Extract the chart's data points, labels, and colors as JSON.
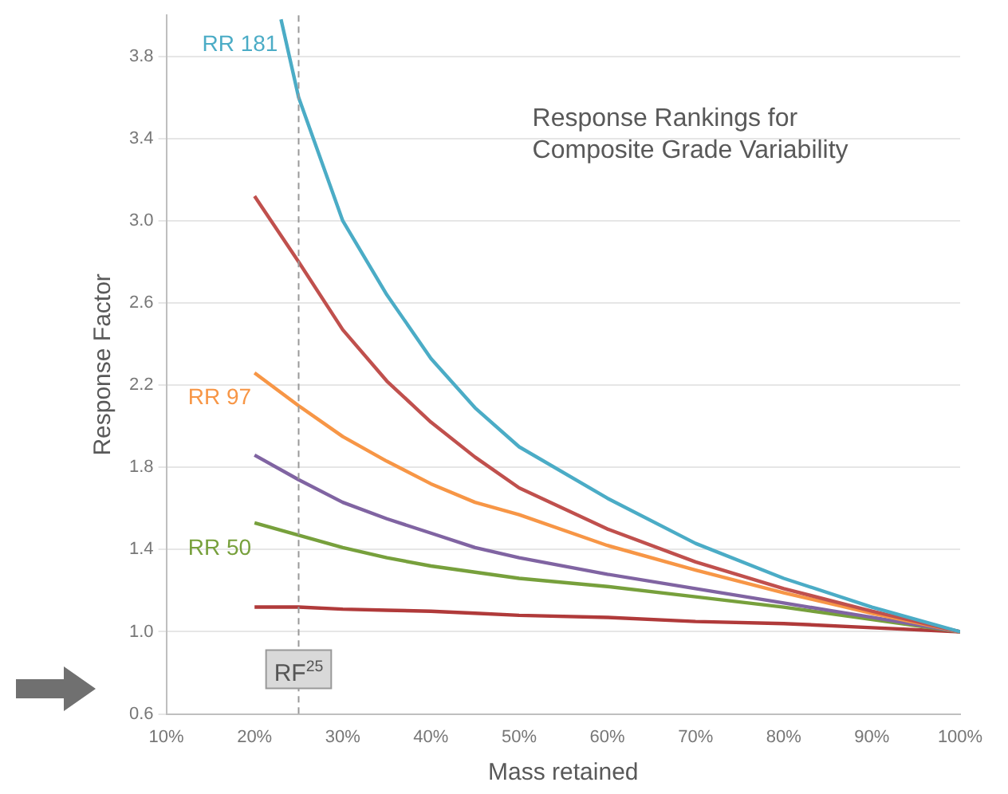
{
  "chart_data": {
    "type": "line",
    "title": "Response Rankings for\nComposite Grade Variability",
    "xlabel": "Mass retained",
    "ylabel": "Response Factor",
    "x": [
      20,
      25,
      30,
      35,
      40,
      45,
      50,
      60,
      70,
      80,
      90,
      100
    ],
    "series": [
      {
        "name": "RR 181",
        "color": "#4bacc6",
        "x": [
          23,
          25,
          30,
          35,
          40,
          45,
          50,
          60,
          70,
          80,
          90,
          100
        ],
        "values": [
          3.98,
          3.6,
          3.0,
          2.64,
          2.33,
          2.09,
          1.9,
          1.65,
          1.43,
          1.26,
          1.12,
          1.0
        ]
      },
      {
        "color": "#c0504d",
        "values": [
          3.12,
          2.8,
          2.47,
          2.22,
          2.02,
          1.85,
          1.7,
          1.5,
          1.34,
          1.21,
          1.1,
          1.0
        ]
      },
      {
        "name": "RR 97",
        "color": "#f79646",
        "values": [
          2.26,
          2.1,
          1.95,
          1.83,
          1.72,
          1.63,
          1.57,
          1.42,
          1.3,
          1.19,
          1.09,
          1.0
        ]
      },
      {
        "color": "#8064a2",
        "values": [
          1.86,
          1.74,
          1.63,
          1.55,
          1.48,
          1.41,
          1.36,
          1.28,
          1.21,
          1.14,
          1.07,
          1.0
        ]
      },
      {
        "name": "RR 50",
        "color": "#77a03c",
        "values": [
          1.53,
          1.47,
          1.41,
          1.36,
          1.32,
          1.29,
          1.26,
          1.22,
          1.17,
          1.12,
          1.06,
          1.0
        ]
      },
      {
        "color": "#b03a3a",
        "values": [
          1.12,
          1.12,
          1.11,
          1.105,
          1.1,
          1.09,
          1.08,
          1.07,
          1.05,
          1.04,
          1.02,
          1.0
        ]
      }
    ],
    "xlim": [
      10,
      100
    ],
    "xticks": [
      {
        "value": 10,
        "label": "10%"
      },
      {
        "value": 20,
        "label": "20%"
      },
      {
        "value": 30,
        "label": "30%"
      },
      {
        "value": 40,
        "label": "40%"
      },
      {
        "value": 50,
        "label": "50%"
      },
      {
        "value": 60,
        "label": "60%"
      },
      {
        "value": 70,
        "label": "70%"
      },
      {
        "value": 80,
        "label": "80%"
      },
      {
        "value": 90,
        "label": "90%"
      },
      {
        "value": 100,
        "label": "100%"
      }
    ],
    "ylim": [
      0.6,
      4.0
    ],
    "yticks": [
      {
        "value": 0.6,
        "label": "0.6"
      },
      {
        "value": 1.0,
        "label": "1.0"
      },
      1.4,
      1.8,
      2.2,
      2.6,
      {
        "value": 3.0,
        "label": "3.0"
      },
      3.4,
      3.8
    ],
    "ref_lines": [
      {
        "axis": "x",
        "value": 25,
        "label": "RF$^{25}$",
        "color": "#999999",
        "line_style": "dashed"
      }
    ],
    "grid": "y",
    "legend": false,
    "marker": "none",
    "line_style": "solid"
  }
}
